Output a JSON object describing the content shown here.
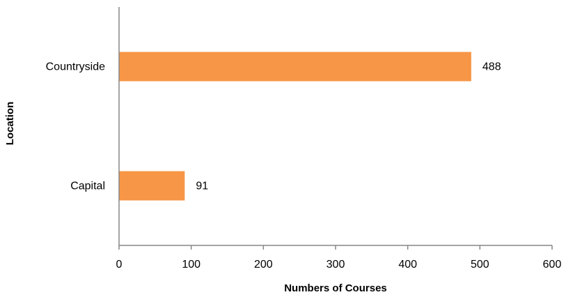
{
  "chart_data": {
    "type": "bar",
    "orientation": "horizontal",
    "categories": [
      "Countryside",
      "Capital"
    ],
    "values": [
      488,
      91
    ],
    "data_labels": [
      "488",
      "91"
    ],
    "xlabel": "Numbers of Courses",
    "ylabel": "Location",
    "xlim": [
      0,
      600
    ],
    "xticks": [
      0,
      100,
      200,
      300,
      400,
      500,
      600
    ],
    "xtick_labels": [
      "0",
      "100",
      "200",
      "300",
      "400",
      "500",
      "600"
    ],
    "grid": false,
    "legend": "none",
    "colors": {
      "bar": "#F79646",
      "axis": "#868686"
    }
  }
}
